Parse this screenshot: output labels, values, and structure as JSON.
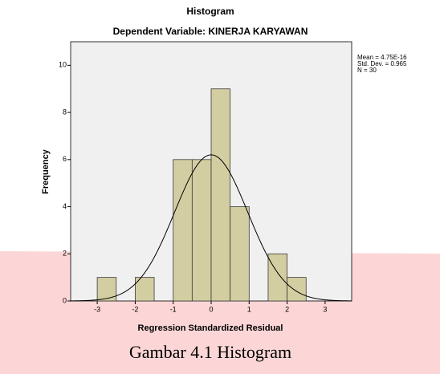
{
  "chart_data": {
    "type": "histogram",
    "title": "Histogram",
    "subtitle": "Dependent Variable: KINERJA KARYAWAN",
    "xlabel": "Regression Standardized Residual",
    "ylabel": "Frequency",
    "bins": [
      -3,
      -2.5,
      -2,
      -1.5,
      -1,
      -0.5,
      0,
      0.5,
      1,
      1.5,
      2,
      2.5
    ],
    "values": [
      1,
      0,
      1,
      0,
      6,
      6,
      9,
      4,
      0,
      2,
      1
    ],
    "color": "#d3cea1",
    "xlim": [
      -3.7,
      3.7
    ],
    "xticks": [
      -3,
      -2,
      -1,
      0,
      1,
      2,
      3
    ],
    "ylim": [
      0,
      11
    ],
    "yticks": [
      0,
      2,
      4,
      6,
      8,
      10
    ],
    "stats": [
      {
        "label": "Mean =",
        "value": 4.75e-16,
        "value_label": "4.75E-16"
      },
      {
        "label": "Std. Dev. =",
        "value": 0.965
      },
      {
        "label": "N =",
        "value": 30
      }
    ],
    "caption": "Gambar 4.1 Histogram"
  }
}
